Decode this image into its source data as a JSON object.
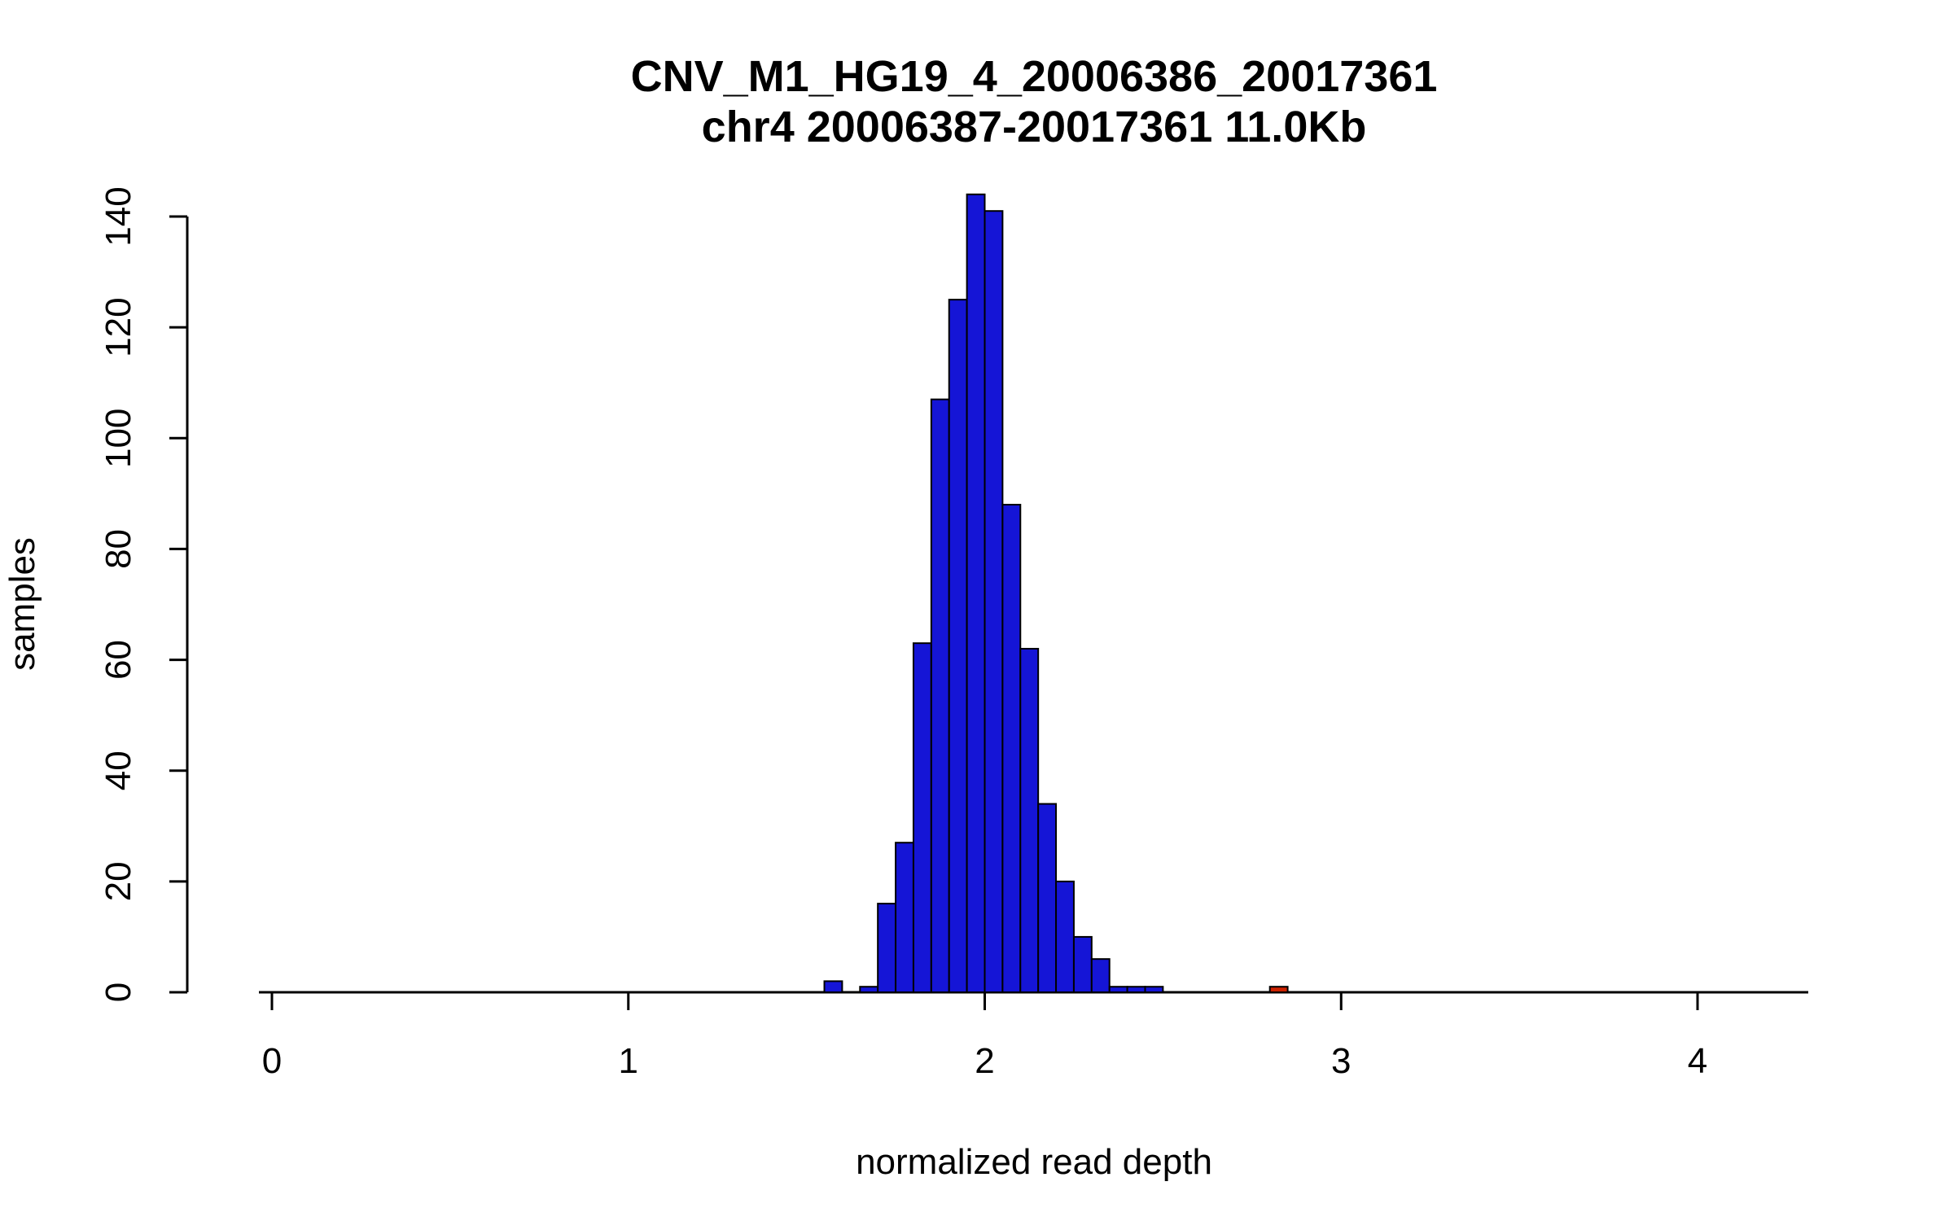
{
  "chart_data": {
    "type": "bar",
    "subtype": "histogram",
    "title": "CNV_M1_HG19_4_20006386_20017361",
    "subtitle": "chr4 20006387-20017361 11.0Kb",
    "xlabel": "normalized read depth",
    "ylabel": "samples",
    "xlim": [
      0,
      4.35
    ],
    "ylim": [
      0,
      144
    ],
    "x_ticks": [
      0,
      1,
      2,
      3,
      4
    ],
    "y_ticks": [
      0,
      20,
      40,
      60,
      80,
      100,
      120,
      140
    ],
    "grid": false,
    "legend": "none",
    "bin_width": 0.05,
    "bars": [
      {
        "x": 1.55,
        "count": 2
      },
      {
        "x": 1.65,
        "count": 1
      },
      {
        "x": 1.7,
        "count": 16
      },
      {
        "x": 1.75,
        "count": 27
      },
      {
        "x": 1.8,
        "count": 63
      },
      {
        "x": 1.85,
        "count": 107
      },
      {
        "x": 1.9,
        "count": 125
      },
      {
        "x": 1.95,
        "count": 144
      },
      {
        "x": 2.0,
        "count": 141
      },
      {
        "x": 2.05,
        "count": 88
      },
      {
        "x": 2.1,
        "count": 62
      },
      {
        "x": 2.15,
        "count": 34
      },
      {
        "x": 2.2,
        "count": 20
      },
      {
        "x": 2.25,
        "count": 10
      },
      {
        "x": 2.3,
        "count": 6
      },
      {
        "x": 2.35,
        "count": 1
      },
      {
        "x": 2.4,
        "count": 1
      },
      {
        "x": 2.45,
        "count": 1
      },
      {
        "x": 2.8,
        "count": 1,
        "color": "#CC2200"
      }
    ],
    "colors": {
      "bar_fill": "#1515D6",
      "highlight_fill": "#CC2200",
      "bar_stroke": "#000000",
      "axis": "#000000",
      "background": "#ffffff"
    }
  }
}
